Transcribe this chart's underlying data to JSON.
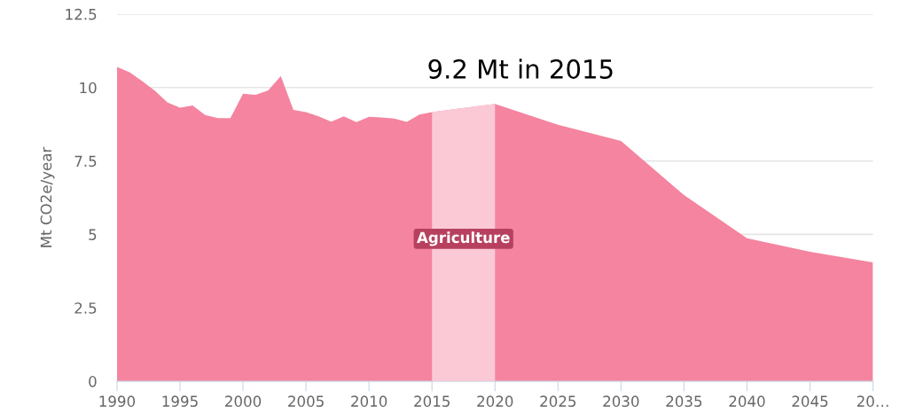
{
  "chart_data": {
    "type": "area",
    "ylabel": "Mt CO2e/year",
    "annotations": [
      "9.2 Mt in 2015"
    ],
    "x": [
      1990,
      1991,
      1992,
      1993,
      1994,
      1995,
      1996,
      1997,
      1998,
      1999,
      2000,
      2001,
      2002,
      2003,
      2004,
      2005,
      2006,
      2007,
      2008,
      2009,
      2010,
      2011,
      2012,
      2013,
      2014,
      2015,
      2020,
      2025,
      2030,
      2035,
      2040,
      2045,
      2050
    ],
    "series": [
      {
        "name": "Agriculture",
        "color": "#f4849f",
        "values": [
          10.7,
          10.52,
          10.22,
          9.89,
          9.49,
          9.31,
          9.39,
          9.06,
          8.96,
          8.96,
          9.79,
          9.75,
          9.9,
          10.39,
          9.24,
          9.16,
          9.02,
          8.84,
          9.02,
          8.82,
          9.0,
          8.98,
          8.94,
          8.83,
          9.08,
          9.16,
          9.44,
          8.73,
          8.18,
          6.34,
          4.87,
          4.41,
          4.05
        ]
      }
    ],
    "bands": [
      {
        "axis": "x",
        "from": 2015,
        "to": 2020,
        "color": "#fbc9d6"
      }
    ],
    "xlim": [
      1990,
      2050
    ],
    "xticks": [
      1990,
      1995,
      2000,
      2005,
      2010,
      2015,
      2020,
      2025,
      2030,
      2035,
      2040,
      2045,
      {
        "value": 2050,
        "label": "20…"
      }
    ],
    "ylim": [
      0,
      12.5
    ],
    "yticks": [
      0,
      2.5,
      5,
      7.5,
      10,
      12.5
    ],
    "grid": "y",
    "legend": false
  }
}
